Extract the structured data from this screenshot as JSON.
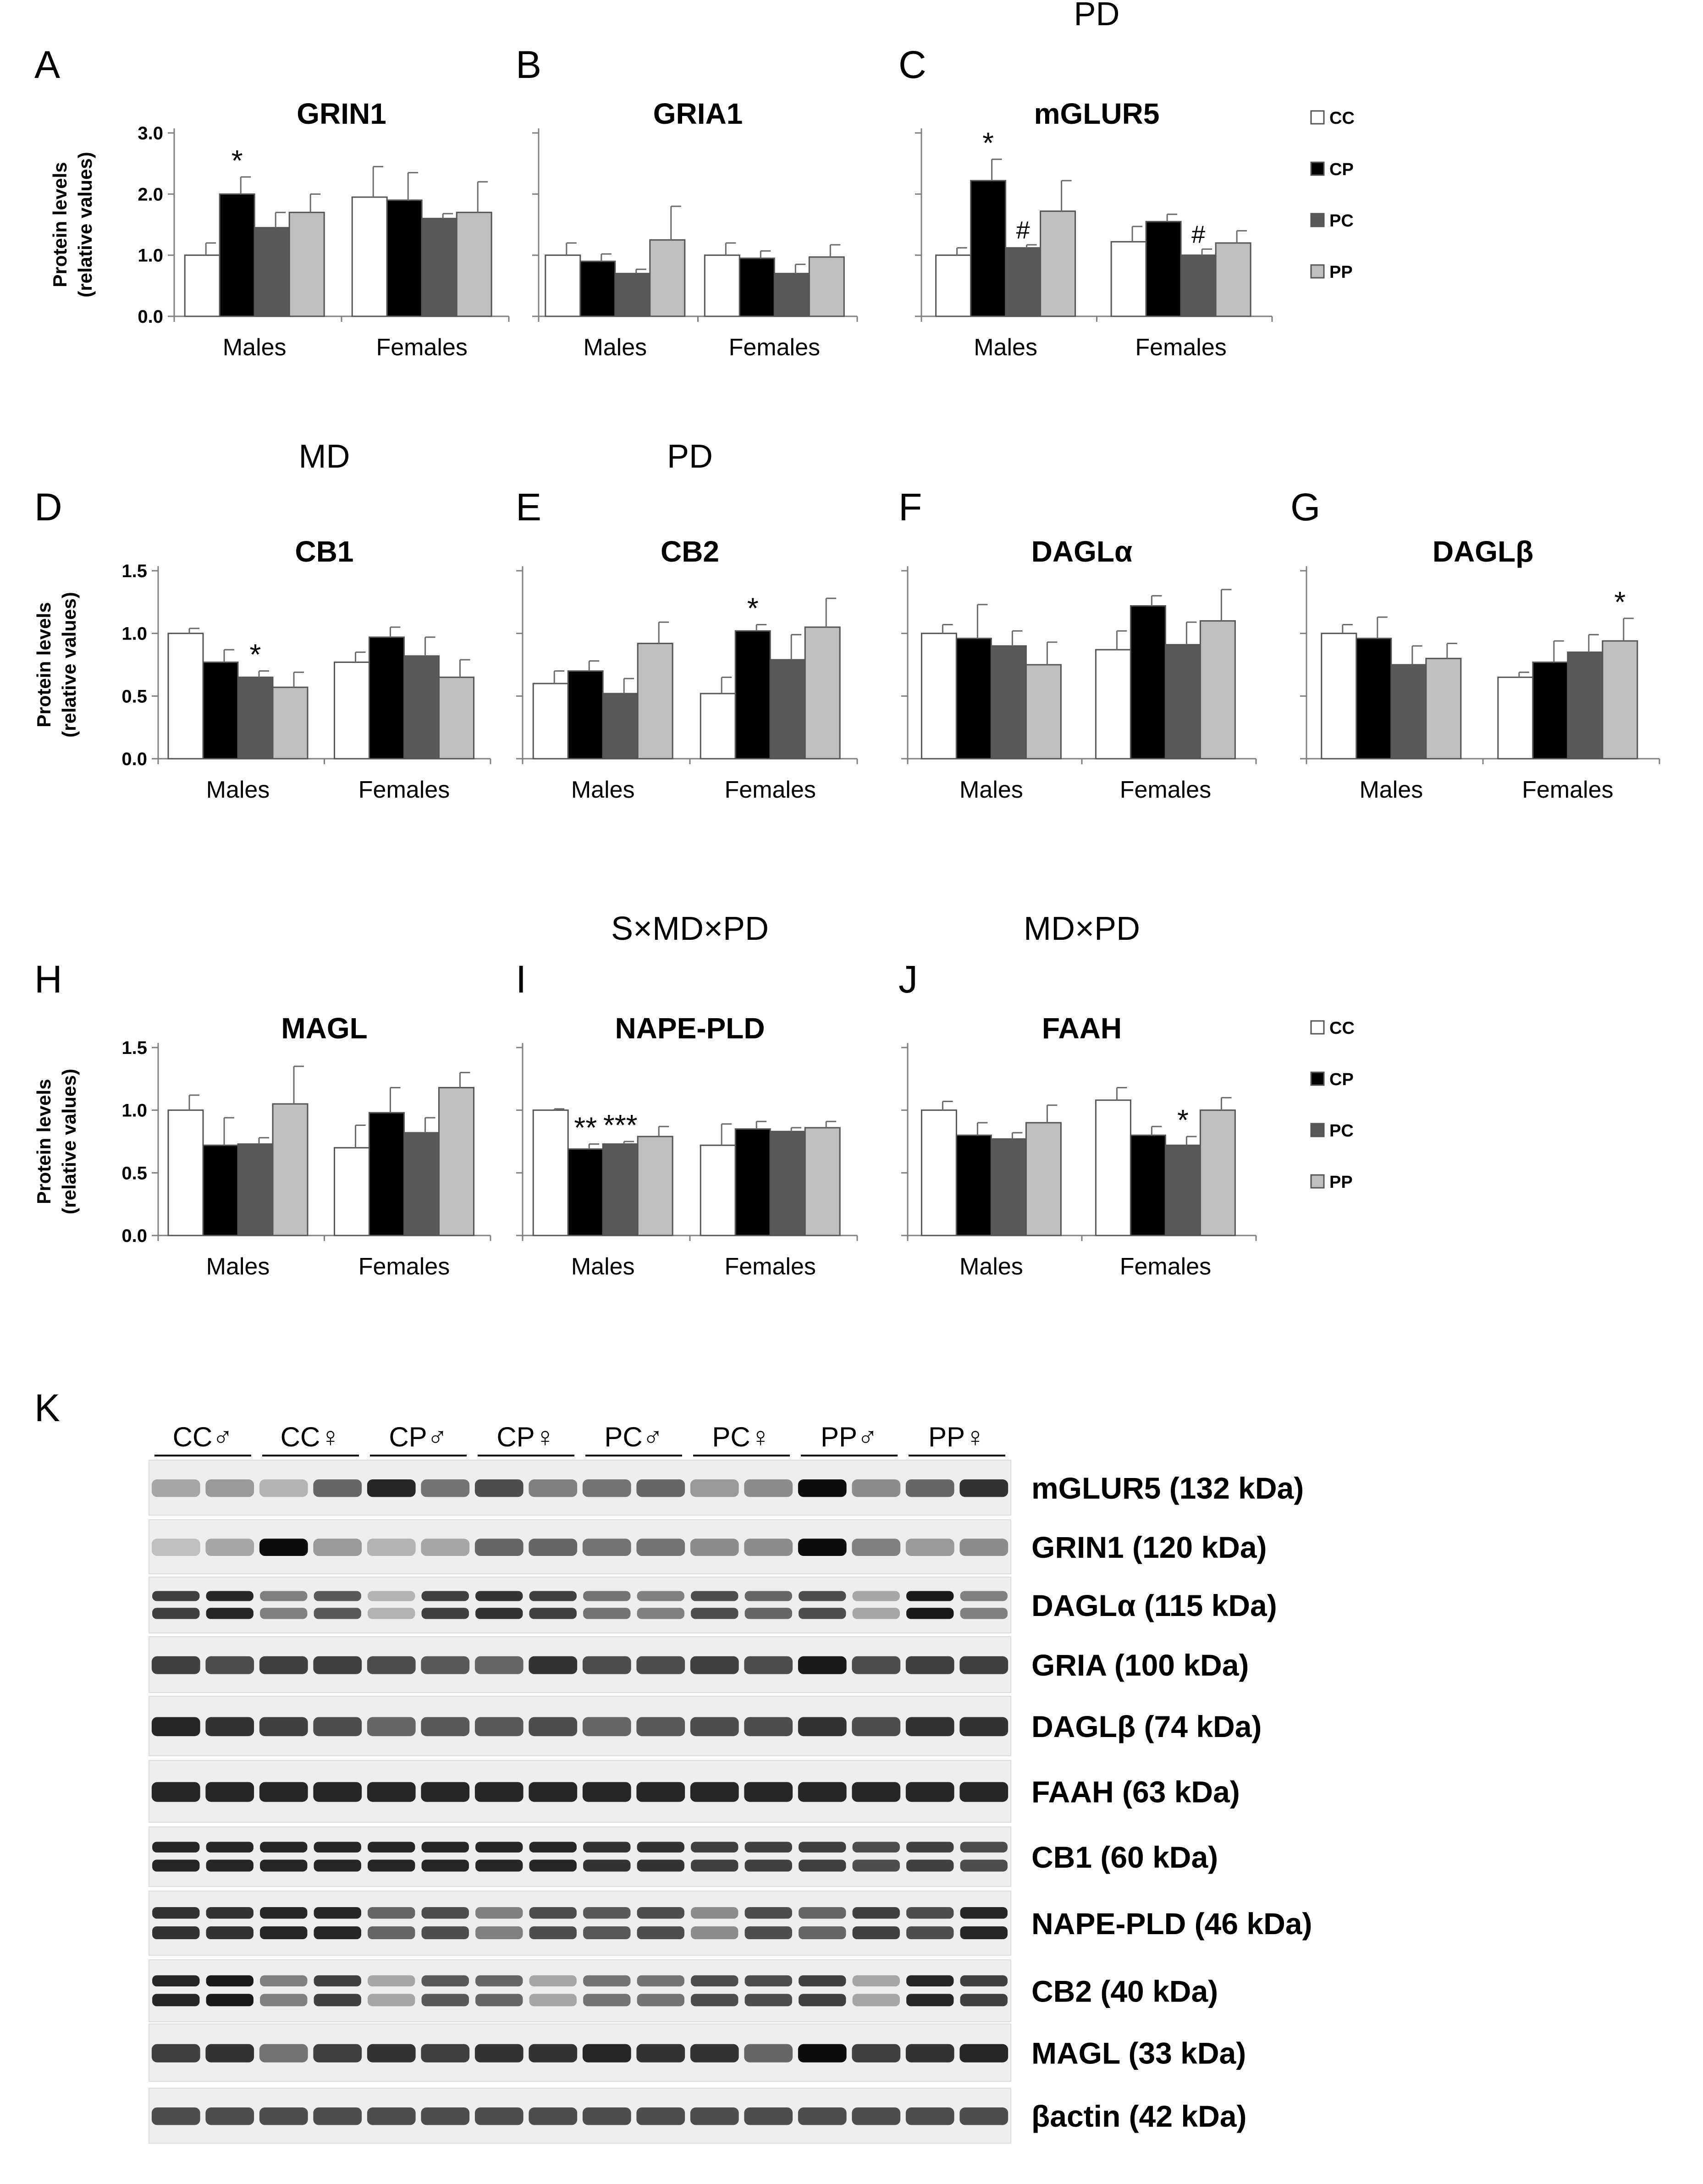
{
  "group_labels": [
    "CC",
    "CP",
    "PC",
    "PP"
  ],
  "colors": {
    "CC": "#ffffff",
    "CP": "#000000",
    "PC": "#595959",
    "PP": "#bfbfbf"
  },
  "y_axis_label": [
    "Protein levels",
    "(relative values)"
  ],
  "charts": [
    {
      "letter": "A",
      "title": "GRIN1",
      "effect": "",
      "type": "bar",
      "ylim": [
        0,
        3.0
      ],
      "yticks": [
        "0.0",
        "1.0",
        "2.0",
        "3.0"
      ],
      "show_ylabel": true,
      "categories": [
        "Males",
        "Females"
      ],
      "series": [
        {
          "name": "CC",
          "values": [
            1.0,
            1.95
          ],
          "errors": [
            0.2,
            0.5
          ],
          "marks": [
            "",
            ""
          ]
        },
        {
          "name": "CP",
          "values": [
            2.0,
            1.9
          ],
          "errors": [
            0.28,
            0.45
          ],
          "marks": [
            "*",
            ""
          ]
        },
        {
          "name": "PC",
          "values": [
            1.45,
            1.6
          ],
          "errors": [
            0.25,
            0.08
          ],
          "marks": [
            "",
            ""
          ]
        },
        {
          "name": "PP",
          "values": [
            1.7,
            1.7
          ],
          "errors": [
            0.3,
            0.5
          ],
          "marks": [
            "",
            ""
          ]
        }
      ]
    },
    {
      "letter": "B",
      "title": "GRIA1",
      "effect": "",
      "type": "bar",
      "ylim": [
        0,
        3.0
      ],
      "yticks": [],
      "show_ylabel": false,
      "categories": [
        "Males",
        "Females"
      ],
      "series": [
        {
          "name": "CC",
          "values": [
            1.0,
            1.0
          ],
          "errors": [
            0.2,
            0.2
          ],
          "marks": [
            "",
            ""
          ]
        },
        {
          "name": "CP",
          "values": [
            0.9,
            0.95
          ],
          "errors": [
            0.12,
            0.12
          ],
          "marks": [
            "",
            ""
          ]
        },
        {
          "name": "PC",
          "values": [
            0.7,
            0.7
          ],
          "errors": [
            0.07,
            0.15
          ],
          "marks": [
            "",
            ""
          ]
        },
        {
          "name": "PP",
          "values": [
            1.25,
            0.97
          ],
          "errors": [
            0.55,
            0.2
          ],
          "marks": [
            "",
            ""
          ]
        }
      ]
    },
    {
      "letter": "C",
      "title": "mGLUR5",
      "effect": "PD",
      "type": "bar",
      "ylim": [
        0,
        3.0
      ],
      "yticks": [],
      "show_ylabel": false,
      "categories": [
        "Males",
        "Females"
      ],
      "series": [
        {
          "name": "CC",
          "values": [
            1.0,
            1.22
          ],
          "errors": [
            0.12,
            0.25
          ],
          "marks": [
            "",
            ""
          ]
        },
        {
          "name": "CP",
          "values": [
            2.22,
            1.55
          ],
          "errors": [
            0.35,
            0.12
          ],
          "marks": [
            "*",
            ""
          ]
        },
        {
          "name": "PC",
          "values": [
            1.12,
            1.0
          ],
          "errors": [
            0.05,
            0.1
          ],
          "marks": [
            "#",
            "#"
          ]
        },
        {
          "name": "PP",
          "values": [
            1.72,
            1.2
          ],
          "errors": [
            0.5,
            0.2
          ],
          "marks": [
            "",
            ""
          ]
        }
      ]
    },
    {
      "letter": "D",
      "title": "CB1",
      "effect": "MD",
      "type": "bar",
      "ylim": [
        0,
        1.5
      ],
      "yticks": [
        "0.0",
        "0.5",
        "1.0",
        "1.5"
      ],
      "show_ylabel": true,
      "categories": [
        "Males",
        "Females"
      ],
      "series": [
        {
          "name": "CC",
          "values": [
            1.0,
            0.77
          ],
          "errors": [
            0.04,
            0.08
          ],
          "marks": [
            "",
            ""
          ]
        },
        {
          "name": "CP",
          "values": [
            0.77,
            0.97
          ],
          "errors": [
            0.1,
            0.08
          ],
          "marks": [
            "",
            ""
          ]
        },
        {
          "name": "PC",
          "values": [
            0.65,
            0.82
          ],
          "errors": [
            0.05,
            0.15
          ],
          "marks": [
            "*",
            ""
          ]
        },
        {
          "name": "PP",
          "values": [
            0.57,
            0.65
          ],
          "errors": [
            0.12,
            0.14
          ],
          "marks": [
            "",
            ""
          ]
        }
      ]
    },
    {
      "letter": "E",
      "title": "CB2",
      "effect": "PD",
      "type": "bar",
      "ylim": [
        0,
        1.5
      ],
      "yticks": [],
      "show_ylabel": false,
      "categories": [
        "Males",
        "Females"
      ],
      "series": [
        {
          "name": "CC",
          "values": [
            0.6,
            0.52
          ],
          "errors": [
            0.1,
            0.13
          ],
          "marks": [
            "",
            ""
          ]
        },
        {
          "name": "CP",
          "values": [
            0.7,
            1.02
          ],
          "errors": [
            0.08,
            0.05
          ],
          "marks": [
            "",
            "*"
          ]
        },
        {
          "name": "PC",
          "values": [
            0.52,
            0.79
          ],
          "errors": [
            0.12,
            0.2
          ],
          "marks": [
            "",
            ""
          ]
        },
        {
          "name": "PP",
          "values": [
            0.92,
            1.05
          ],
          "errors": [
            0.17,
            0.23
          ],
          "marks": [
            "",
            ""
          ]
        }
      ]
    },
    {
      "letter": "F",
      "title": "DAGLα",
      "effect": "",
      "type": "bar",
      "ylim": [
        0,
        1.5
      ],
      "yticks": [],
      "show_ylabel": false,
      "categories": [
        "Males",
        "Females"
      ],
      "series": [
        {
          "name": "CC",
          "values": [
            1.0,
            0.87
          ],
          "errors": [
            0.07,
            0.15
          ],
          "marks": [
            "",
            ""
          ]
        },
        {
          "name": "CP",
          "values": [
            0.96,
            1.22
          ],
          "errors": [
            0.27,
            0.08
          ],
          "marks": [
            "",
            ""
          ]
        },
        {
          "name": "PC",
          "values": [
            0.9,
            0.91
          ],
          "errors": [
            0.12,
            0.18
          ],
          "marks": [
            "",
            ""
          ]
        },
        {
          "name": "PP",
          "values": [
            0.75,
            1.1
          ],
          "errors": [
            0.18,
            0.25
          ],
          "marks": [
            "",
            ""
          ]
        }
      ]
    },
    {
      "letter": "G",
      "title": "DAGLβ",
      "effect": "",
      "type": "bar",
      "ylim": [
        0,
        1.5
      ],
      "yticks": [],
      "show_ylabel": false,
      "categories": [
        "Males",
        "Females"
      ],
      "series": [
        {
          "name": "CC",
          "values": [
            1.0,
            0.65
          ],
          "errors": [
            0.07,
            0.04
          ],
          "marks": [
            "",
            ""
          ]
        },
        {
          "name": "CP",
          "values": [
            0.96,
            0.77
          ],
          "errors": [
            0.17,
            0.17
          ],
          "marks": [
            "",
            ""
          ]
        },
        {
          "name": "PC",
          "values": [
            0.75,
            0.85
          ],
          "errors": [
            0.15,
            0.14
          ],
          "marks": [
            "",
            ""
          ]
        },
        {
          "name": "PP",
          "values": [
            0.8,
            0.94
          ],
          "errors": [
            0.12,
            0.18
          ],
          "marks": [
            "",
            "*"
          ]
        }
      ]
    },
    {
      "letter": "H",
      "title": "MAGL",
      "effect": "",
      "type": "bar",
      "ylim": [
        0,
        1.5
      ],
      "yticks": [
        "0.0",
        "0.5",
        "1.0",
        "1.5"
      ],
      "show_ylabel": true,
      "categories": [
        "Males",
        "Females"
      ],
      "series": [
        {
          "name": "CC",
          "values": [
            1.0,
            0.7
          ],
          "errors": [
            0.12,
            0.18
          ],
          "marks": [
            "",
            ""
          ]
        },
        {
          "name": "CP",
          "values": [
            0.72,
            0.98
          ],
          "errors": [
            0.22,
            0.2
          ],
          "marks": [
            "",
            ""
          ]
        },
        {
          "name": "PC",
          "values": [
            0.73,
            0.82
          ],
          "errors": [
            0.05,
            0.12
          ],
          "marks": [
            "",
            ""
          ]
        },
        {
          "name": "PP",
          "values": [
            1.05,
            1.18
          ],
          "errors": [
            0.3,
            0.12
          ],
          "marks": [
            "",
            ""
          ]
        }
      ]
    },
    {
      "letter": "I",
      "title": "NAPE-PLD",
      "effect": "S×MD×PD",
      "type": "bar",
      "ylim": [
        0,
        1.5
      ],
      "yticks": [],
      "show_ylabel": false,
      "categories": [
        "Males",
        "Females"
      ],
      "series": [
        {
          "name": "CC",
          "values": [
            1.0,
            0.72
          ],
          "errors": [
            0.01,
            0.17
          ],
          "marks": [
            "",
            ""
          ]
        },
        {
          "name": "CP",
          "values": [
            0.69,
            0.85
          ],
          "errors": [
            0.04,
            0.06
          ],
          "marks": [
            "**",
            ""
          ]
        },
        {
          "name": "PC",
          "values": [
            0.73,
            0.83
          ],
          "errors": [
            0.02,
            0.03
          ],
          "marks": [
            "***",
            ""
          ]
        },
        {
          "name": "PP",
          "values": [
            0.79,
            0.86
          ],
          "errors": [
            0.08,
            0.05
          ],
          "marks": [
            "",
            ""
          ]
        }
      ]
    },
    {
      "letter": "J",
      "title": "FAAH",
      "effect": "MD×PD",
      "type": "bar",
      "ylim": [
        0,
        1.5
      ],
      "yticks": [],
      "show_ylabel": false,
      "categories": [
        "Males",
        "Females"
      ],
      "series": [
        {
          "name": "CC",
          "values": [
            1.0,
            1.08
          ],
          "errors": [
            0.07,
            0.1
          ],
          "marks": [
            "",
            ""
          ]
        },
        {
          "name": "CP",
          "values": [
            0.8,
            0.8
          ],
          "errors": [
            0.1,
            0.07
          ],
          "marks": [
            "",
            ""
          ]
        },
        {
          "name": "PC",
          "values": [
            0.77,
            0.72
          ],
          "errors": [
            0.05,
            0.07
          ],
          "marks": [
            "",
            "*"
          ]
        },
        {
          "name": "PP",
          "values": [
            0.9,
            1.0
          ],
          "errors": [
            0.14,
            0.1
          ],
          "marks": [
            "",
            ""
          ]
        }
      ]
    }
  ],
  "blot": {
    "letter": "K",
    "lanes": [
      "CC♂",
      "CC♀",
      "CP♂",
      "CP♀",
      "PC♂",
      "PC♀",
      "PP♂",
      "PP♀"
    ],
    "proteins": [
      "mGLUR5 (132 kDa)",
      "GRIN1 (120 kDa)",
      "DAGLα (115 kDa)",
      "GRIA (100 kDa)",
      "DAGLβ (74 kDa)",
      "FAAH (63 kDa)",
      "CB1 (60 kDa)",
      "NAPE-PLD (46 kDa)",
      "CB2 (40 kDa)",
      "MAGL (33 kDa)",
      "βactin (42 kDa)"
    ]
  }
}
